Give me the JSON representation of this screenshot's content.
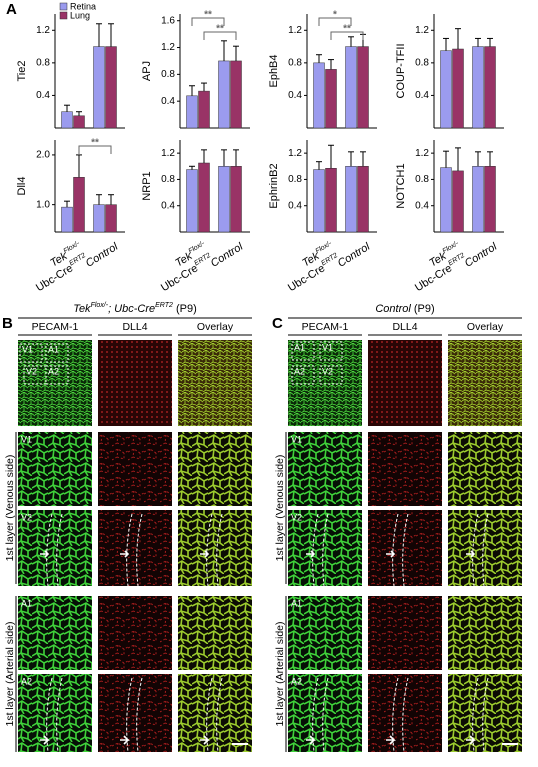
{
  "chart_data": [
    {
      "type": "bar",
      "ylabel": "Tie2",
      "ylim": [
        0,
        1.4
      ],
      "yticks": [
        0.4,
        0.8,
        1.2
      ],
      "series": [
        {
          "name": "Retina",
          "color": "#9b9bee",
          "values": [
            0.2,
            1.0
          ],
          "errors": [
            0.08,
            0.28
          ]
        },
        {
          "name": "Lung",
          "color": "#993366",
          "values": [
            0.15,
            1.0
          ],
          "errors": [
            0.05,
            0.28
          ]
        }
      ]
    },
    {
      "type": "bar",
      "ylabel": "APJ",
      "ylim": [
        0,
        1.7
      ],
      "yticks": [
        0.4,
        0.8,
        1.2,
        1.6
      ],
      "annotations": [
        "**",
        "**"
      ],
      "series": [
        {
          "color": "#9b9bee",
          "values": [
            0.48,
            1.0
          ],
          "errors": [
            0.15,
            0.3
          ]
        },
        {
          "color": "#993366",
          "values": [
            0.55,
            1.0
          ],
          "errors": [
            0.12,
            0.22
          ]
        }
      ]
    },
    {
      "type": "bar",
      "ylabel": "EphB4",
      "ylim": [
        0,
        1.4
      ],
      "yticks": [
        0.4,
        0.8,
        1.2
      ],
      "annotations": [
        "*",
        "**"
      ],
      "series": [
        {
          "color": "#9b9bee",
          "values": [
            0.8,
            1.0
          ],
          "errors": [
            0.1,
            0.12
          ]
        },
        {
          "color": "#993366",
          "values": [
            0.72,
            1.0
          ],
          "errors": [
            0.12,
            0.15
          ]
        }
      ]
    },
    {
      "type": "bar",
      "ylabel": "COUP-TFII",
      "ylim": [
        0,
        1.4
      ],
      "yticks": [
        0.4,
        0.8,
        1.2
      ],
      "series": [
        {
          "color": "#9b9bee",
          "values": [
            0.95,
            1.0
          ],
          "errors": [
            0.15,
            0.1
          ]
        },
        {
          "color": "#993366",
          "values": [
            0.97,
            1.0
          ],
          "errors": [
            0.25,
            0.1
          ]
        }
      ]
    },
    {
      "type": "bar",
      "ylabel": "Dll4",
      "ylim": [
        0.45,
        2.3
      ],
      "yticks": [
        {
          "value": 1,
          "label": "1.0"
        },
        {
          "value": 2,
          "label": "2.0"
        }
      ],
      "annotations": [
        "**"
      ],
      "categories": [
        [
          "Tek",
          "Flox/-",
          "Ubc-Cre",
          "ERT2"
        ],
        "Control"
      ],
      "series": [
        {
          "color": "#9b9bee",
          "values": [
            0.95,
            1.0
          ],
          "errors": [
            0.12,
            0.2
          ]
        },
        {
          "color": "#993366",
          "values": [
            1.55,
            1.0
          ],
          "errors": [
            0.45,
            0.2
          ]
        }
      ]
    },
    {
      "type": "bar",
      "ylabel": "NRP1",
      "ylim": [
        0,
        1.4
      ],
      "yticks": [
        0.4,
        0.8,
        1.2
      ],
      "categories": [
        [
          "Tek",
          "Flox/-",
          "Ubc-Cre",
          "ERT2"
        ],
        "Control"
      ],
      "series": [
        {
          "color": "#9b9bee",
          "values": [
            0.95,
            1.0
          ],
          "errors": [
            0.05,
            0.25
          ]
        },
        {
          "color": "#993366",
          "values": [
            1.05,
            1.0
          ],
          "errors": [
            0.2,
            0.25
          ]
        }
      ]
    },
    {
      "type": "bar",
      "ylabel": "EphrinB2",
      "ylim": [
        0,
        1.4
      ],
      "yticks": [
        0.4,
        0.8,
        1.2
      ],
      "categories": [
        [
          "Tek",
          "Flox/-",
          "Ubc-Cre",
          "ERT2"
        ],
        "Control"
      ],
      "series": [
        {
          "color": "#9b9bee",
          "values": [
            0.95,
            1.0
          ],
          "errors": [
            0.12,
            0.22
          ]
        },
        {
          "color": "#993366",
          "values": [
            0.97,
            1.0
          ],
          "errors": [
            0.35,
            0.22
          ]
        }
      ]
    },
    {
      "type": "bar",
      "ylabel": "NOTCH1",
      "ylim": [
        0,
        1.4
      ],
      "yticks": [
        0.4,
        0.8,
        1.2
      ],
      "categories": [
        [
          "Tek",
          "Flox/-",
          "Ubc-Cre",
          "ERT2"
        ],
        "Control"
      ],
      "series": [
        {
          "color": "#9b9bee",
          "values": [
            0.98,
            1.0
          ],
          "errors": [
            0.25,
            0.22
          ]
        },
        {
          "color": "#993366",
          "values": [
            0.93,
            1.0
          ],
          "errors": [
            0.35,
            0.22
          ]
        }
      ]
    }
  ],
  "panel_a_letter": "A",
  "panels": [
    {
      "letter": "B",
      "title": [
        "Tek",
        "Flox/-",
        "; Ubc-Cre",
        "ERT2",
        " (P9)"
      ],
      "columns": [
        "PECAM-1",
        "DLL4",
        "Overlay"
      ],
      "rows": [
        "V1",
        "V2",
        "A1",
        "A2"
      ],
      "overview_labels": [
        "V1",
        "A1",
        "A2",
        "V2"
      ],
      "side_labels": [
        "1st layer (Venous side)",
        "1st layer (Arterial side)"
      ]
    },
    {
      "letter": "C",
      "title": [
        "Control",
        " (P9)"
      ],
      "columns": [
        "PECAM-1",
        "DLL4",
        "Overlay"
      ],
      "rows": [
        "V1",
        "V2",
        "A1",
        "A2"
      ],
      "overview_labels": [
        "A1",
        "V1",
        "A2",
        "V2"
      ],
      "side_labels": [
        "1st layer (Venous side)",
        "1st layer (Arterial side)"
      ]
    }
  ]
}
